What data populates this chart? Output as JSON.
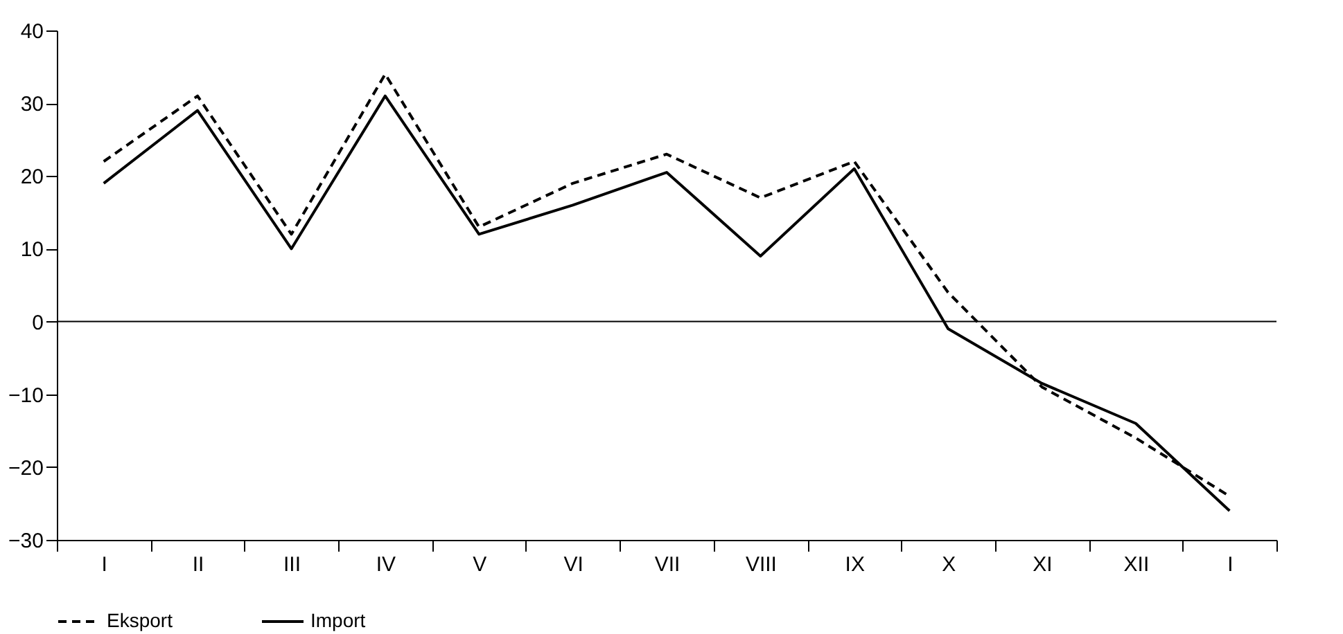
{
  "chart_data": {
    "type": "line",
    "categories": [
      "I",
      "II",
      "III",
      "IV",
      "V",
      "VI",
      "VII",
      "VIII",
      "IX",
      "X",
      "XI",
      "XII",
      "I"
    ],
    "series": [
      {
        "name": "Eksport",
        "color": "#000000",
        "line_style": "dashed",
        "values": [
          22,
          31,
          12,
          34,
          13,
          19,
          23,
          17,
          22,
          4,
          -9,
          -16,
          -24
        ]
      },
      {
        "name": "Import",
        "color": "#000000",
        "line_style": "solid",
        "values": [
          19,
          29,
          10,
          31,
          12,
          16,
          20.5,
          9,
          21,
          -1,
          -8.5,
          -14,
          -26
        ]
      }
    ],
    "ylim": [
      -30,
      40
    ],
    "yticks": [
      -30,
      -20,
      -10,
      0,
      10,
      20,
      30,
      40
    ],
    "ref_lines": [
      {
        "axis": "y",
        "value": 0,
        "color": "#000000"
      }
    ],
    "grid": false,
    "legend": "bottom",
    "marker": "none"
  }
}
